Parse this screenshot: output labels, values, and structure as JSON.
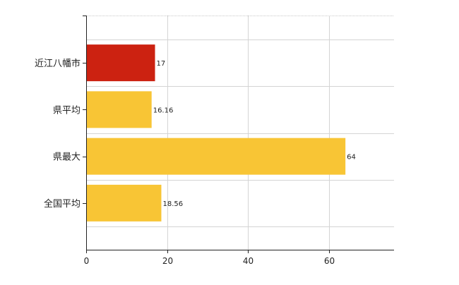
{
  "chart_data": {
    "type": "bar",
    "orientation": "horizontal",
    "categories": [
      "近江八幡市",
      "県平均",
      "県最大",
      "全国平均"
    ],
    "values": [
      17,
      16.16,
      64,
      18.56
    ],
    "data_labels": [
      "17",
      "16.16",
      "64",
      "18.56"
    ],
    "bar_colors": [
      "#cc2211",
      "#f8c535",
      "#f8c535",
      "#f8c535"
    ],
    "xlim": [
      0,
      76
    ],
    "x_ticks": [
      0,
      20,
      40,
      60
    ],
    "x_tick_labels": [
      "0",
      "20",
      "40",
      "60"
    ],
    "grid": true,
    "legend": "none",
    "title": "",
    "xlabel": "",
    "ylabel": ""
  }
}
